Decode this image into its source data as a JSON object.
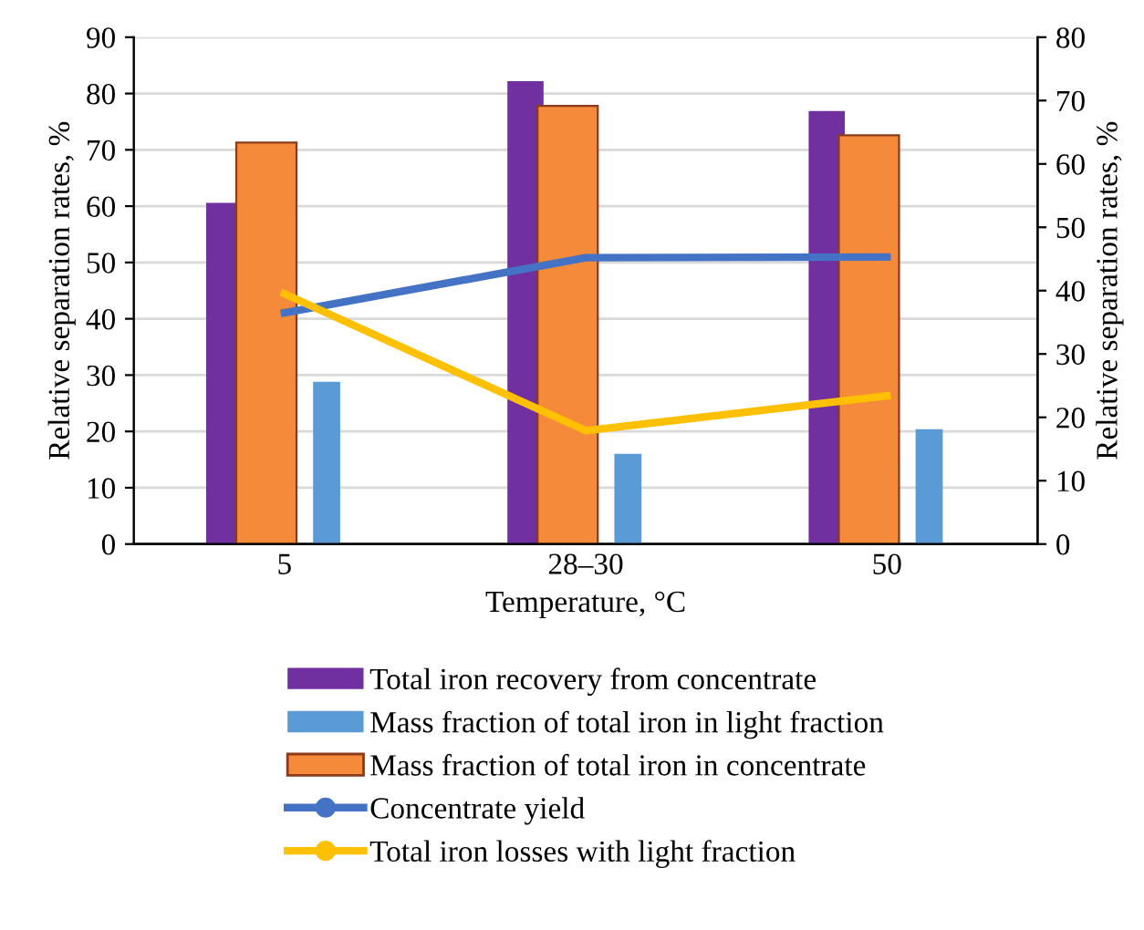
{
  "chart_data": {
    "type": "bar",
    "xlabel": "Temperature, °C",
    "ylabel": "Relative separation rates, %",
    "y2label": "Relative separation rates, %",
    "categories": [
      "5",
      "28–30",
      "50"
    ],
    "series": [
      {
        "name": "Total iron recovery from concentrate",
        "color": "#7030a0",
        "values": [
          60.6,
          82.2,
          76.9
        ]
      },
      {
        "name": "Mass fraction of total iron in light fraction",
        "color": "#5b9bd5",
        "values": [
          28.8,
          16.0,
          20.4
        ]
      },
      {
        "name": "Mass fraction of total iron in concentrate",
        "color": "#f58a3a",
        "values": [
          71.3,
          77.8,
          72.6
        ]
      },
      {
        "name": "Concentrate yield",
        "type": "line",
        "axis": "y2",
        "color": "#4472c4",
        "values": [
          36.5,
          45.2,
          45.3
        ]
      },
      {
        "name": "Total iron losses with light fraction",
        "type": "line",
        "axis": "y2",
        "color": "#ffc000",
        "values": [
          39.5,
          17.9,
          23.4
        ]
      }
    ],
    "ylim": [
      0,
      90
    ],
    "yticks": [
      0,
      10,
      20,
      30,
      40,
      50,
      60,
      70,
      80,
      90
    ],
    "y2lim": [
      0,
      80
    ],
    "y2ticks": [
      0,
      10,
      20,
      30,
      40,
      50,
      60,
      70,
      80
    ],
    "grid": "y",
    "legend": "bottom",
    "marker": "none",
    "line_style": "solid"
  }
}
